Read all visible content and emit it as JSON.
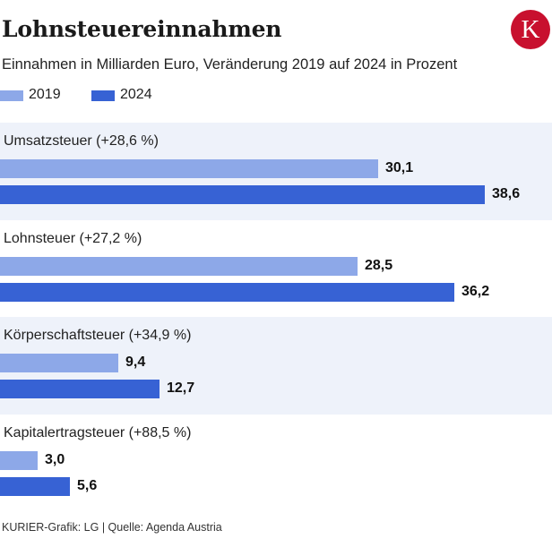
{
  "header": {
    "title": "Lohnsteuereinnahmen",
    "subtitle": "Einnahmen in Milliarden Euro, Veränderung 2019 auf 2024 in Prozent",
    "logo_letter": "K"
  },
  "colors": {
    "series_2019": "#8da8e8",
    "series_2024": "#3762d4",
    "band": "#eef2fa",
    "logo": "#c8102e"
  },
  "chart_data": {
    "type": "bar",
    "orientation": "horizontal",
    "title": "Lohnsteuereinnahmen",
    "subtitle": "Einnahmen in Milliarden Euro, Veränderung 2019 auf 2024 in Prozent",
    "legend": [
      "2019",
      "2024"
    ],
    "legend_position": "top-left",
    "value_unit": "Mrd. Euro",
    "xlim": [
      0,
      38.6
    ],
    "categories": [
      "Umsatzsteuer (+28,6 %)",
      "Lohnsteuer (+27,2 %)",
      "Körperschaftsteuer (+34,9 %)",
      "Kapitalertragsteuer (+88,5 %)"
    ],
    "series": [
      {
        "name": "2019",
        "values": [
          30.1,
          28.5,
          9.4,
          3.0
        ],
        "labels": [
          "30,1",
          "28,5",
          "9,4",
          "3,0"
        ]
      },
      {
        "name": "2024",
        "values": [
          38.6,
          36.2,
          12.7,
          5.6
        ],
        "labels": [
          "38,6",
          "36,2",
          "12,7",
          "5,6"
        ]
      }
    ]
  },
  "footer": {
    "source": "KURIER-Grafik: LG | Quelle: Agenda Austria"
  }
}
